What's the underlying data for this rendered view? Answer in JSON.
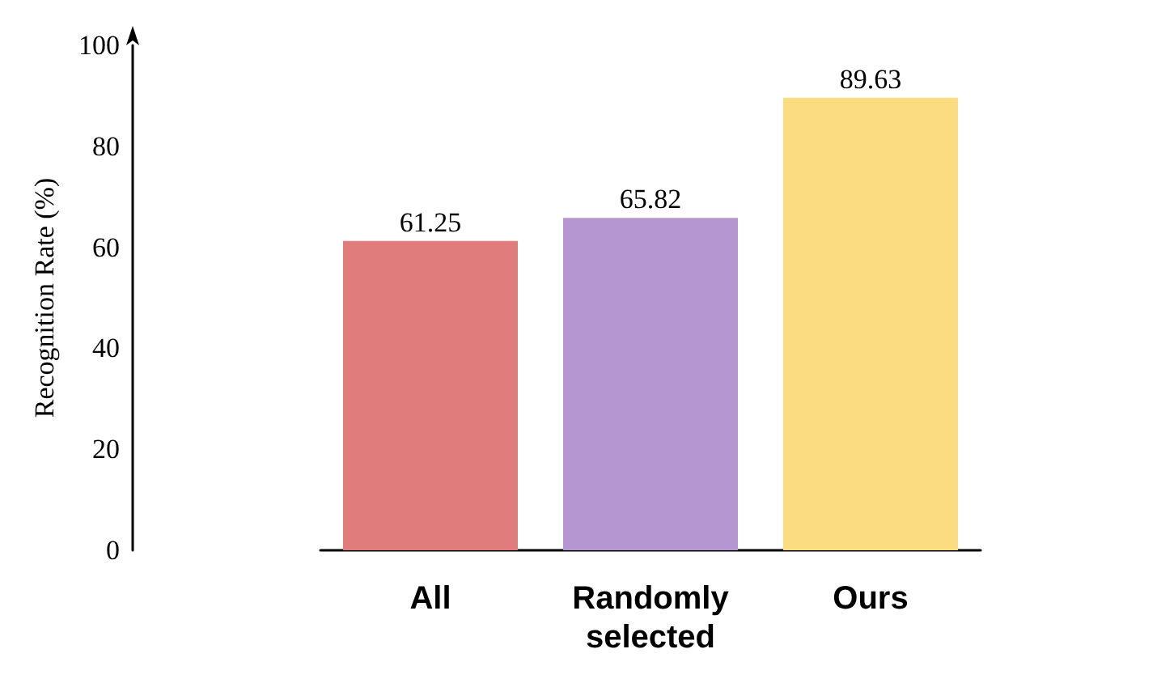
{
  "chart_data": {
    "type": "bar",
    "ylabel": "Recognition Rate (%)",
    "categories": [
      "All",
      "Randomly\nselected",
      "Ours"
    ],
    "values": [
      61.25,
      65.82,
      89.63
    ],
    "colors": [
      "#e07c7c",
      "#b596d0",
      "#fcdc80"
    ],
    "ylim": [
      0,
      100
    ],
    "yticks": [
      0,
      20,
      40,
      60,
      80,
      100
    ],
    "grid": false,
    "data_labels": true
  }
}
